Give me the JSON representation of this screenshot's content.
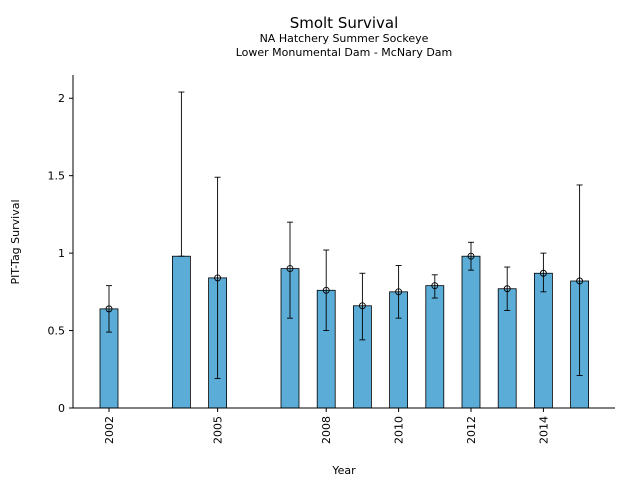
{
  "chart_data": {
    "type": "bar",
    "title": "Smolt Survival",
    "subtitle_lines": [
      "NA Hatchery Summer Sockeye",
      "Lower Monumental Dam - McNary Dam"
    ],
    "xlabel": "Year",
    "ylabel": "PIT-Tag Survival",
    "ylim": [
      0,
      2.15
    ],
    "yticks": [
      0,
      0.5,
      1,
      1.5,
      2
    ],
    "ytick_labels": [
      "0",
      "0.5",
      "1",
      "1.5",
      "2"
    ],
    "xticks": [
      2002,
      2005,
      2008,
      2010,
      2012,
      2014
    ],
    "xtick_labels": [
      "2002",
      "2005",
      "2008",
      "2010",
      "2012",
      "2014"
    ],
    "grid": false,
    "bar_color": "#5bacd6",
    "bars": [
      {
        "year": 2002,
        "value": 0.64,
        "lower": 0.49,
        "upper": 0.79,
        "marker": true
      },
      {
        "year": 2004,
        "value": 0.98,
        "lower": 0.98,
        "upper": 2.04,
        "marker": false
      },
      {
        "year": 2005,
        "value": 0.84,
        "lower": 0.19,
        "upper": 1.49,
        "marker": true
      },
      {
        "year": 2007,
        "value": 0.9,
        "lower": 0.58,
        "upper": 1.2,
        "marker": true
      },
      {
        "year": 2008,
        "value": 0.76,
        "lower": 0.5,
        "upper": 1.02,
        "marker": true
      },
      {
        "year": 2009,
        "value": 0.66,
        "lower": 0.44,
        "upper": 0.87,
        "marker": true
      },
      {
        "year": 2010,
        "value": 0.75,
        "lower": 0.58,
        "upper": 0.92,
        "marker": true
      },
      {
        "year": 2011,
        "value": 0.79,
        "lower": 0.71,
        "upper": 0.86,
        "marker": true
      },
      {
        "year": 2012,
        "value": 0.98,
        "lower": 0.89,
        "upper": 1.07,
        "marker": true
      },
      {
        "year": 2013,
        "value": 0.77,
        "lower": 0.63,
        "upper": 0.91,
        "marker": true
      },
      {
        "year": 2014,
        "value": 0.87,
        "lower": 0.75,
        "upper": 1.0,
        "marker": true
      },
      {
        "year": 2015,
        "value": 0.82,
        "lower": 0.21,
        "upper": 1.44,
        "marker": true
      }
    ]
  }
}
